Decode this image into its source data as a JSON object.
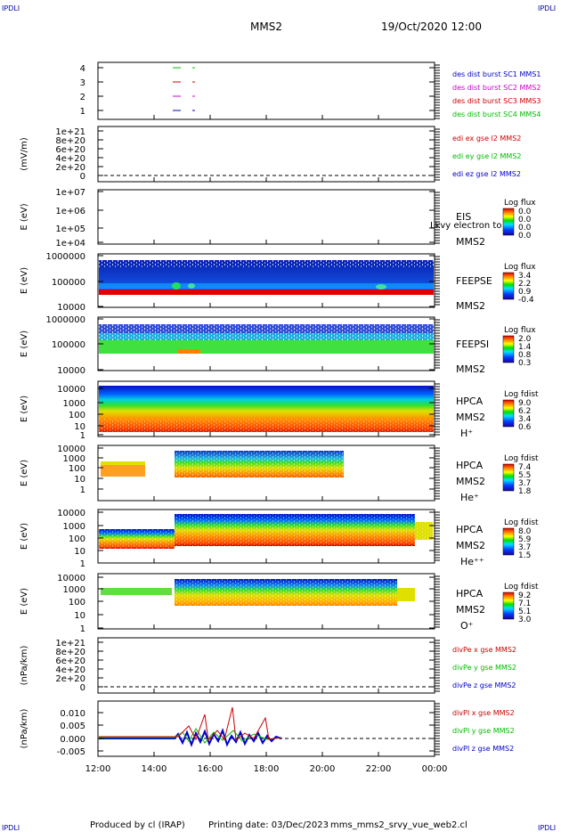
{
  "corners": {
    "tl": "IPDLI",
    "tr": "IPDLI",
    "bl": "IPDLI",
    "br": "IPDLI"
  },
  "header": {
    "spacecraft": "MMS2",
    "date": "19/Oct/2020 12:00"
  },
  "footer": {
    "produced": "Produced by cl (IRAP)",
    "printing": "Printing date: 03/Dec/2023",
    "file": "mms_mms2_srvy_vue_web2.cl"
  },
  "x_axis": {
    "ticks": [
      "12:00",
      "14:00",
      "16:00",
      "18:00",
      "20:00",
      "22:00",
      "00:00"
    ]
  },
  "panels": [
    {
      "id": "burst",
      "yticks": [
        "4",
        "3",
        "2",
        "1"
      ],
      "ylabel": "",
      "legend": [
        {
          "text": "des dist burst SC1 MMS1",
          "color": "#0000cc"
        },
        {
          "text": "des dist burst SC2 MMS2",
          "color": "#cc00cc"
        },
        {
          "text": "des dist burst SC3 MMS3",
          "color": "#cc0000"
        },
        {
          "text": "des dist burst SC4 MMS4",
          "color": "#00bb00"
        }
      ]
    },
    {
      "id": "edi",
      "yticks": [
        "1e+21",
        "8e+20",
        "6e+20",
        "4e+20",
        "2e+20",
        "0"
      ],
      "ylabel": "(mV/m)",
      "legend": [
        {
          "text": "edi ex gse l2 MMS2",
          "color": "#cc0000"
        },
        {
          "text": "edi ey gse l2 MMS2",
          "color": "#00bb00"
        },
        {
          "text": "edi ez gse l2 MMS2",
          "color": "#0000cc"
        }
      ]
    },
    {
      "id": "eis",
      "yticks": [
        "1e+07",
        "1e+06",
        "1e+05",
        "1e+04"
      ],
      "ylabel": "E (eV)",
      "side": [
        "EIS",
        "MMS2"
      ],
      "overlay": "Lkvy electron to",
      "cb_title": "Log flux",
      "cb_ticks": [
        "0.0",
        "0.0",
        "0.0",
        "0.0"
      ]
    },
    {
      "id": "feepse",
      "yticks": [
        "1000000",
        "100000",
        "10000"
      ],
      "ylabel": "E (eV)",
      "side": [
        "FEEPSE",
        "MMS2"
      ],
      "cb_title": "Log flux",
      "cb_ticks": [
        "3.4",
        "2.2",
        "0.9",
        "-0.4"
      ]
    },
    {
      "id": "feepsi",
      "yticks": [
        "1000000",
        "100000",
        "10000"
      ],
      "ylabel": "E (eV)",
      "side": [
        "FEEPSI",
        "MMS2"
      ],
      "cb_title": "Log flux",
      "cb_ticks": [
        "2.0",
        "1.4",
        "0.8",
        "0.3"
      ]
    },
    {
      "id": "hpca_h",
      "yticks": [
        "10000",
        "1000",
        "100",
        "10",
        "1"
      ],
      "ylabel": "E (eV)",
      "side": [
        "HPCA",
        "MMS2",
        "H⁺"
      ],
      "cb_title": "Log fdist",
      "cb_ticks": [
        "9.0",
        "6.2",
        "3.4",
        "0.6"
      ]
    },
    {
      "id": "hpca_he",
      "yticks": [
        "10000",
        "1000",
        "100",
        "10",
        "1"
      ],
      "ylabel": "E (eV)",
      "side": [
        "HPCA",
        "MMS2",
        "He⁺"
      ],
      "cb_title": "Log fdist",
      "cb_ticks": [
        "7.4",
        "5.5",
        "3.7",
        "1.8"
      ]
    },
    {
      "id": "hpca_hepp",
      "yticks": [
        "10000",
        "1000",
        "100",
        "10",
        "1"
      ],
      "ylabel": "E (eV)",
      "side": [
        "HPCA",
        "MMS2",
        "He⁺⁺"
      ],
      "cb_title": "Log fdist",
      "cb_ticks": [
        "8.0",
        "5.9",
        "3.7",
        "1.5"
      ]
    },
    {
      "id": "hpca_o",
      "yticks": [
        "10000",
        "1000",
        "100",
        "10",
        "1"
      ],
      "ylabel": "E (eV)",
      "side": [
        "HPCA",
        "MMS2",
        "O⁺"
      ],
      "cb_title": "Log fdist",
      "cb_ticks": [
        "9.2",
        "7.1",
        "5.1",
        "3.0"
      ]
    },
    {
      "id": "divpe",
      "yticks": [
        "1e+21",
        "8e+20",
        "6e+20",
        "4e+20",
        "2e+20",
        "0"
      ],
      "ylabel": "(nPa/km)",
      "legend": [
        {
          "text": "divPe x gse MMS2",
          "color": "#cc0000"
        },
        {
          "text": "divPe y gse MMS2",
          "color": "#00bb00"
        },
        {
          "text": "divPe z gse MMS2",
          "color": "#0000cc"
        }
      ]
    },
    {
      "id": "divpi",
      "yticks": [
        "0.010",
        "0.005",
        "0.000",
        "-0.005"
      ],
      "ylabel": "(nPa/km)",
      "legend": [
        {
          "text": "divPI x gse MMS2",
          "color": "#cc0000"
        },
        {
          "text": "divPI y gse MMS2",
          "color": "#00bb00"
        },
        {
          "text": "divPI z gse MMS2",
          "color": "#0000cc"
        }
      ]
    }
  ],
  "chart_data": {
    "type": "heatmap",
    "x": [
      "12:00",
      "14:00",
      "16:00",
      "18:00",
      "20:00",
      "22:00",
      "00:00"
    ],
    "burst_intervals": [
      {
        "sc": 4,
        "from": "14:40",
        "to": "15:20"
      },
      {
        "sc": 3,
        "from": "14:40",
        "to": "15:20"
      },
      {
        "sc": 2,
        "from": "14:40",
        "to": "15:20"
      },
      {
        "sc": 1,
        "from": "14:40",
        "to": "15:20"
      }
    ],
    "divpi_range": [
      -0.005,
      0.012
    ]
  }
}
